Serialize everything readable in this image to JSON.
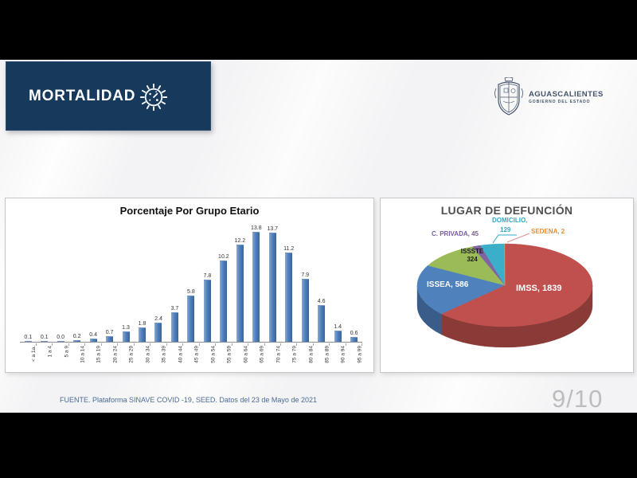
{
  "banner": {
    "title": "MORTALIDAD"
  },
  "logo": {
    "state": "AGUASCALIENTES",
    "subtitle": "GOBIERNO DEL ESTADO"
  },
  "icons": {
    "banner": "virus-icon",
    "logo": "state-seal-icon"
  },
  "footer": {
    "source": "FUENTE. Plataforma SINAVE COVID -19, SEED. Datos del 23 de Mayo de 2021",
    "page": "9/10"
  },
  "colors": {
    "banner_bg": "#17395C",
    "bar": "#4F81BD",
    "footer_text": "#4A6A96",
    "page_number": "#BDBDBD"
  },
  "chart_data": [
    {
      "type": "bar",
      "title": "Porcentaje Por Grupo Etario",
      "categories": [
        "< a 1a.",
        "1 a 4",
        "5 a 9",
        "10 a 14",
        "15 a 19",
        "20 a 24",
        "25 a 29",
        "30 a 34",
        "35 a 39",
        "40 a 44",
        "45 a 49",
        "50 a 54",
        "55 a 59",
        "60 a 64",
        "65 a 69",
        "70 a 74",
        "75 a 79",
        "80 a 84",
        "85 a 89",
        "90 a 94",
        "95 a 99"
      ],
      "values": [
        0.1,
        0.1,
        0.0,
        0.2,
        0.4,
        0.7,
        1.3,
        1.8,
        2.4,
        3.7,
        5.8,
        7.8,
        10.2,
        12.2,
        13.8,
        13.7,
        11.2,
        7.9,
        4.6,
        1.4,
        0.6
      ],
      "xlabel": "",
      "ylabel": "",
      "ylim": [
        0,
        15
      ],
      "grid": false,
      "value_labels": true,
      "bar_color": "#4F81BD"
    },
    {
      "type": "pie",
      "title": "LUGAR DE DEFUNCIÓN",
      "labels": [
        "IMSS",
        "ISSEA",
        "ISSSTE",
        "C. PRIVADA",
        "DOMICILIO",
        "SEDENA"
      ],
      "values": [
        1839,
        586,
        324,
        45,
        129,
        2
      ],
      "colors": [
        "#C0504D",
        "#4F81BD",
        "#9BBB59",
        "#8064A2",
        "#3BAFCA",
        "#F79646"
      ],
      "style": "3d",
      "start_angle": "top",
      "direction": "clockwise",
      "legend": "none",
      "display_labels": {
        "imss": "IMSS, 1839",
        "issea": "ISSEA, 586",
        "issste_line1": "ISSSTE",
        "issste_line2": "324",
        "c_privada": "C. PRIVADA, 45",
        "domicilio_line1": "DOMICILIO,",
        "domicilio_line2": "129",
        "sedena": "SEDENA, 2"
      }
    }
  ]
}
